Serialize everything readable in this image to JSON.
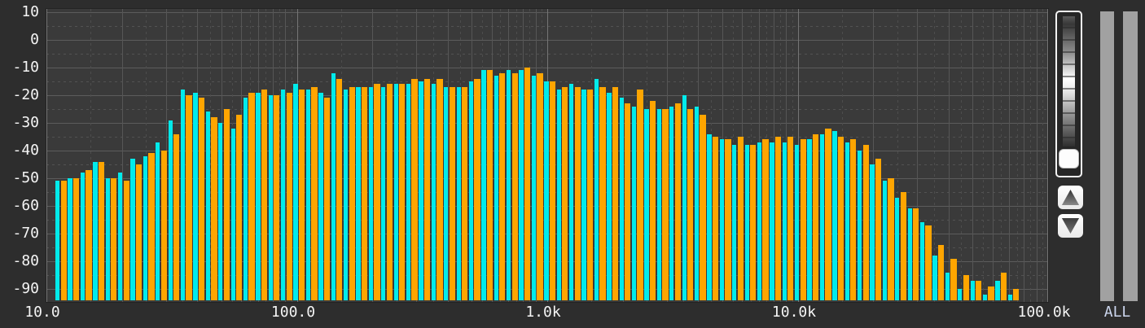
{
  "window": {
    "app_type": "audio-spectrum-analyzer",
    "background": "#2d2d2d",
    "plot_background": "#3a3a3a"
  },
  "controls": {
    "all_label": "ALL",
    "fader": {
      "description": "vertical gain fader with gradient scale and white knob at bottom"
    },
    "up_button_icon": "up-arrow",
    "down_button_icon": "down-arrow",
    "scrollbars": 2
  },
  "colors": {
    "channel_a": "#00ebeb",
    "channel_b": "#ffa500",
    "axis_text": "#f5f5f5",
    "all_text": "#ccd6ee",
    "grid_major": "#5c5c5c",
    "grid_minor": "#525252",
    "grid_decade": "#757575",
    "scrollbar_gray": "#a1a1a1"
  },
  "chart_data": {
    "type": "bar",
    "title": "",
    "xlabel": "",
    "ylabel": "",
    "x_axis": {
      "scale": "log",
      "min_hz": 10,
      "max_hz": 100000,
      "tick_labels": [
        "10.0",
        "100.0",
        "1.0k",
        "10.0k",
        "100.0k"
      ],
      "minor_grid_multipliers": [
        1.5,
        2,
        2.5,
        3,
        3.5,
        4,
        4.5,
        5,
        5.5,
        6,
        6.5,
        7,
        7.5,
        8,
        8.5,
        9,
        9.5
      ]
    },
    "y_axis": {
      "unit": "dB",
      "max": 10,
      "min": -90,
      "major_step": 10,
      "minor_step": 5,
      "tick_labels": [
        "10",
        "0",
        "-10",
        "-20",
        "-30",
        "-40",
        "-50",
        "-60",
        "-70",
        "-80",
        "-90"
      ]
    },
    "grid": true,
    "legend": false,
    "num_bands": 77,
    "series": [
      {
        "name": "channel-a-cyan",
        "color": "#00ebeb",
        "values": [
          -51,
          -50,
          -48,
          -44,
          -50,
          -48,
          -43,
          -42,
          -37,
          -29,
          -18,
          -19,
          -26,
          -30,
          -32,
          -21,
          -19,
          -20,
          -18,
          -16,
          -18,
          -19,
          -12,
          -18,
          -17,
          -17,
          -17,
          -16,
          -16,
          -15,
          -16,
          -17,
          -17,
          -15,
          -11,
          -13,
          -11,
          -11,
          -13,
          -15,
          -18,
          -16,
          -18,
          -14,
          -19,
          -21,
          -24,
          -25,
          -25,
          -24,
          -20,
          -24,
          -34,
          -36,
          -38,
          -38,
          -37,
          -37,
          -37,
          -38,
          -36,
          -34,
          -33,
          -37,
          -40,
          -45,
          -51,
          -57,
          -61,
          -66,
          -78,
          -84,
          -90,
          -87,
          -92,
          -87,
          -92
        ]
      },
      {
        "name": "channel-b-orange",
        "color": "#ffa500",
        "values": [
          -51,
          -50,
          -47,
          -44,
          -50,
          -51,
          -45,
          -41,
          -40,
          -34,
          -20,
          -21,
          -28,
          -25,
          -27,
          -19,
          -18,
          -20,
          -19,
          -18,
          -17,
          -21,
          -14,
          -17,
          -17,
          -16,
          -16,
          -16,
          -14,
          -14,
          -14,
          -17,
          -17,
          -14,
          -11,
          -12,
          -12,
          -10,
          -12,
          -15,
          -17,
          -17,
          -18,
          -17,
          -17,
          -23,
          -18,
          -22,
          -25,
          -23,
          -25,
          -27,
          -35,
          -36,
          -35,
          -38,
          -36,
          -35,
          -35,
          -36,
          -34,
          -32,
          -35,
          -36,
          -38,
          -43,
          -50,
          -55,
          -61,
          -67,
          -74,
          -79,
          -85,
          -87,
          -89,
          -84,
          -90
        ]
      }
    ]
  }
}
